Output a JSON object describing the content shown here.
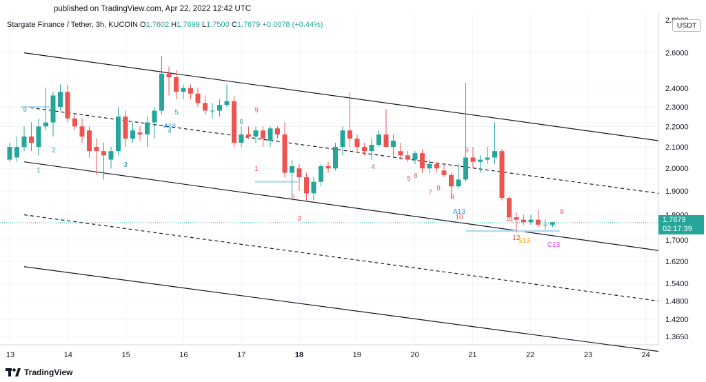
{
  "header": {
    "published": "published on TradingView.com, Apr 22, 2022 12:42 UTC",
    "symbol": "Stargate Finance / Tether, 3h, KUCOIN",
    "open_label": "O",
    "open": "1.7602",
    "high_label": "H",
    "high": "1.7699",
    "low_label": "L",
    "low": "1.7500",
    "close_label": "C",
    "close": "1.7679",
    "change": "+0.0078 (+0.44%)"
  },
  "currency": "USDT",
  "last_price": {
    "value": "1.7679",
    "countdown": "02:17:39"
  },
  "logo_text": "TradingView",
  "colors": {
    "up": "#26a69a",
    "down": "#ef5350",
    "grid": "#f0f3fa",
    "channel": "#131722",
    "support": "#b3d9f2"
  },
  "chart_data": {
    "type": "candlestick",
    "x_ticks": [
      "13",
      "14",
      "15",
      "16",
      "17",
      "18",
      "19",
      "20",
      "21",
      "22",
      "23",
      "24"
    ],
    "y_ticks": [
      1.365,
      1.42,
      1.48,
      1.54,
      1.62,
      1.7,
      1.8,
      1.9,
      2.0,
      2.1,
      2.2,
      2.3,
      2.4,
      2.6
    ],
    "y_tick_labels": [
      "1.3650",
      "1.4200",
      "1.4800",
      "1.5400",
      "1.6200",
      "1.7000",
      "1.8000",
      "1.9000",
      "2.0000",
      "2.1000",
      "2.2000",
      "2.3000",
      "2.4000",
      "2.6000"
    ],
    "y_top_label": "2.8000",
    "candles": [
      {
        "o": 2.04,
        "h": 2.12,
        "l": 2.03,
        "c": 2.1
      },
      {
        "o": 2.05,
        "h": 2.15,
        "l": 2.03,
        "c": 2.1
      },
      {
        "o": 2.1,
        "h": 2.2,
        "l": 2.08,
        "c": 2.15
      },
      {
        "o": 2.15,
        "h": 2.22,
        "l": 2.08,
        "c": 2.12
      },
      {
        "o": 2.1,
        "h": 2.24,
        "l": 2.06,
        "c": 2.2
      },
      {
        "o": 2.2,
        "h": 2.4,
        "l": 2.18,
        "c": 2.22
      },
      {
        "o": 2.22,
        "h": 2.38,
        "l": 2.15,
        "c": 2.36
      },
      {
        "o": 2.3,
        "h": 2.42,
        "l": 2.28,
        "c": 2.38
      },
      {
        "o": 2.38,
        "h": 2.42,
        "l": 2.22,
        "c": 2.24
      },
      {
        "o": 2.24,
        "h": 2.26,
        "l": 2.18,
        "c": 2.2
      },
      {
        "o": 2.2,
        "h": 2.24,
        "l": 2.12,
        "c": 2.15
      },
      {
        "o": 2.18,
        "h": 2.2,
        "l": 2.05,
        "c": 2.08
      },
      {
        "o": 2.1,
        "h": 2.14,
        "l": 1.97,
        "c": 2.08
      },
      {
        "o": 2.08,
        "h": 2.12,
        "l": 1.95,
        "c": 2.06
      },
      {
        "o": 2.04,
        "h": 2.1,
        "l": 2.0,
        "c": 2.08
      },
      {
        "o": 2.08,
        "h": 2.3,
        "l": 2.06,
        "c": 2.25
      },
      {
        "o": 2.25,
        "h": 2.28,
        "l": 2.1,
        "c": 2.14
      },
      {
        "o": 2.14,
        "h": 2.22,
        "l": 2.12,
        "c": 2.18
      },
      {
        "o": 2.17,
        "h": 2.2,
        "l": 2.13,
        "c": 2.16
      },
      {
        "o": 2.16,
        "h": 2.25,
        "l": 2.1,
        "c": 2.22
      },
      {
        "o": 2.22,
        "h": 2.3,
        "l": 2.14,
        "c": 2.28
      },
      {
        "o": 2.28,
        "h": 2.58,
        "l": 2.26,
        "c": 2.48
      },
      {
        "o": 2.48,
        "h": 2.52,
        "l": 2.36,
        "c": 2.46
      },
      {
        "o": 2.46,
        "h": 2.5,
        "l": 2.34,
        "c": 2.38
      },
      {
        "o": 2.38,
        "h": 2.42,
        "l": 2.34,
        "c": 2.4
      },
      {
        "o": 2.4,
        "h": 2.42,
        "l": 2.34,
        "c": 2.37
      },
      {
        "o": 2.37,
        "h": 2.4,
        "l": 2.3,
        "c": 2.32
      },
      {
        "o": 2.32,
        "h": 2.36,
        "l": 2.26,
        "c": 2.28
      },
      {
        "o": 2.28,
        "h": 2.32,
        "l": 2.24,
        "c": 2.28
      },
      {
        "o": 2.28,
        "h": 2.34,
        "l": 2.25,
        "c": 2.31
      },
      {
        "o": 2.31,
        "h": 2.42,
        "l": 2.3,
        "c": 2.33
      },
      {
        "o": 2.33,
        "h": 2.36,
        "l": 2.1,
        "c": 2.12
      },
      {
        "o": 2.12,
        "h": 2.2,
        "l": 2.1,
        "c": 2.16
      },
      {
        "o": 2.16,
        "h": 2.2,
        "l": 2.14,
        "c": 2.15
      },
      {
        "o": 2.15,
        "h": 2.2,
        "l": 2.12,
        "c": 2.18
      },
      {
        "o": 2.18,
        "h": 2.2,
        "l": 2.1,
        "c": 2.14
      },
      {
        "o": 2.13,
        "h": 2.2,
        "l": 2.1,
        "c": 2.19
      },
      {
        "o": 2.19,
        "h": 2.2,
        "l": 2.14,
        "c": 2.16
      },
      {
        "o": 2.16,
        "h": 2.22,
        "l": 1.96,
        "c": 1.98
      },
      {
        "o": 1.98,
        "h": 2.04,
        "l": 1.86,
        "c": 2.01
      },
      {
        "o": 2.0,
        "h": 2.02,
        "l": 1.9,
        "c": 1.96
      },
      {
        "o": 1.96,
        "h": 1.98,
        "l": 1.86,
        "c": 1.89
      },
      {
        "o": 1.89,
        "h": 1.96,
        "l": 1.86,
        "c": 1.94
      },
      {
        "o": 1.94,
        "h": 2.02,
        "l": 1.92,
        "c": 2.01
      },
      {
        "o": 2.01,
        "h": 2.03,
        "l": 1.98,
        "c": 2.0
      },
      {
        "o": 2.0,
        "h": 2.12,
        "l": 1.99,
        "c": 2.1
      },
      {
        "o": 2.1,
        "h": 2.2,
        "l": 2.06,
        "c": 2.18
      },
      {
        "o": 2.18,
        "h": 2.38,
        "l": 2.1,
        "c": 2.14
      },
      {
        "o": 2.14,
        "h": 2.16,
        "l": 2.08,
        "c": 2.1
      },
      {
        "o": 2.1,
        "h": 2.12,
        "l": 2.06,
        "c": 2.08
      },
      {
        "o": 2.08,
        "h": 2.14,
        "l": 2.04,
        "c": 2.11
      },
      {
        "o": 2.11,
        "h": 2.18,
        "l": 2.1,
        "c": 2.16
      },
      {
        "o": 2.16,
        "h": 2.29,
        "l": 2.1,
        "c": 2.1
      },
      {
        "o": 2.1,
        "h": 2.16,
        "l": 2.05,
        "c": 2.13
      },
      {
        "o": 2.08,
        "h": 2.12,
        "l": 2.04,
        "c": 2.06
      },
      {
        "o": 2.06,
        "h": 2.08,
        "l": 2.03,
        "c": 2.04
      },
      {
        "o": 2.04,
        "h": 2.08,
        "l": 2.02,
        "c": 2.07
      },
      {
        "o": 2.07,
        "h": 2.09,
        "l": 1.98,
        "c": 2.0
      },
      {
        "o": 2.0,
        "h": 2.04,
        "l": 1.98,
        "c": 2.02
      },
      {
        "o": 2.02,
        "h": 2.03,
        "l": 1.98,
        "c": 2.0
      },
      {
        "o": 1.99,
        "h": 2.02,
        "l": 1.96,
        "c": 1.97
      },
      {
        "o": 1.97,
        "h": 1.98,
        "l": 1.87,
        "c": 1.92
      },
      {
        "o": 1.92,
        "h": 2.02,
        "l": 1.91,
        "c": 1.95
      },
      {
        "o": 1.95,
        "h": 2.43,
        "l": 1.94,
        "c": 2.05
      },
      {
        "o": 2.05,
        "h": 2.1,
        "l": 2.0,
        "c": 2.03
      },
      {
        "o": 2.03,
        "h": 2.06,
        "l": 1.98,
        "c": 2.04
      },
      {
        "o": 2.04,
        "h": 2.1,
        "l": 2.02,
        "c": 2.05
      },
      {
        "o": 2.05,
        "h": 2.22,
        "l": 2.02,
        "c": 2.08
      },
      {
        "o": 2.08,
        "h": 2.09,
        "l": 1.86,
        "c": 1.87
      },
      {
        "o": 1.87,
        "h": 1.88,
        "l": 1.78,
        "c": 1.79
      },
      {
        "o": 1.79,
        "h": 1.81,
        "l": 1.73,
        "c": 1.78
      },
      {
        "o": 1.78,
        "h": 1.8,
        "l": 1.76,
        "c": 1.77
      },
      {
        "o": 1.77,
        "h": 1.8,
        "l": 1.76,
        "c": 1.78
      },
      {
        "o": 1.78,
        "h": 1.82,
        "l": 1.75,
        "c": 1.76
      },
      {
        "o": 1.76,
        "h": 1.78,
        "l": 1.74,
        "c": 1.76
      },
      {
        "o": 1.76,
        "h": 1.77,
        "l": 1.75,
        "c": 1.77
      }
    ],
    "channel": {
      "upper": [
        [
          0,
          2.6
        ],
        [
          1,
          2.13
        ]
      ],
      "middle": [
        [
          0,
          2.3
        ],
        [
          1,
          1.89
        ]
      ],
      "lower": [
        [
          0,
          2.03
        ],
        [
          1,
          1.66
        ]
      ],
      "lower_mid": [
        [
          0,
          1.8
        ],
        [
          1,
          1.48
        ]
      ],
      "bottom": [
        [
          0,
          1.6
        ],
        [
          1,
          1.32
        ]
      ]
    },
    "annotations": [
      {
        "text": "9",
        "color": "#26a69a"
      },
      {
        "text": "1",
        "color": "#26a69a"
      },
      {
        "text": "2",
        "color": "#26a69a"
      },
      {
        "text": "3",
        "color": "#26a69a"
      },
      {
        "text": "4",
        "color": "#26a69a"
      },
      {
        "text": "5",
        "color": "#26a69a"
      },
      {
        "text": "A13",
        "color": "#2196f3"
      },
      {
        "text": "6",
        "color": "#26a69a"
      },
      {
        "text": "9",
        "color": "#ef5350"
      },
      {
        "text": "1",
        "color": "#ef5350"
      },
      {
        "text": "2",
        "color": "#ef5350"
      },
      {
        "text": "3",
        "color": "#ef5350"
      },
      {
        "text": "4",
        "color": "#ef5350"
      },
      {
        "text": "5",
        "color": "#ef5350"
      },
      {
        "text": "6",
        "color": "#ef5350"
      },
      {
        "text": "7",
        "color": "#ef5350"
      },
      {
        "text": "8",
        "color": "#ef5350"
      },
      {
        "text": "9",
        "color": "#ef5350"
      },
      {
        "text": "9",
        "color": "#ef5350"
      },
      {
        "text": "A13",
        "color": "#2196f3"
      },
      {
        "text": "10",
        "color": "#ef5350"
      },
      {
        "text": "11",
        "color": "#ef5350"
      },
      {
        "text": "12",
        "color": "#ef5350"
      },
      {
        "text": "S13",
        "color": "#f7a600"
      },
      {
        "text": "8",
        "color": "#ef5350"
      },
      {
        "text": "C13",
        "color": "#e040fb"
      }
    ]
  }
}
